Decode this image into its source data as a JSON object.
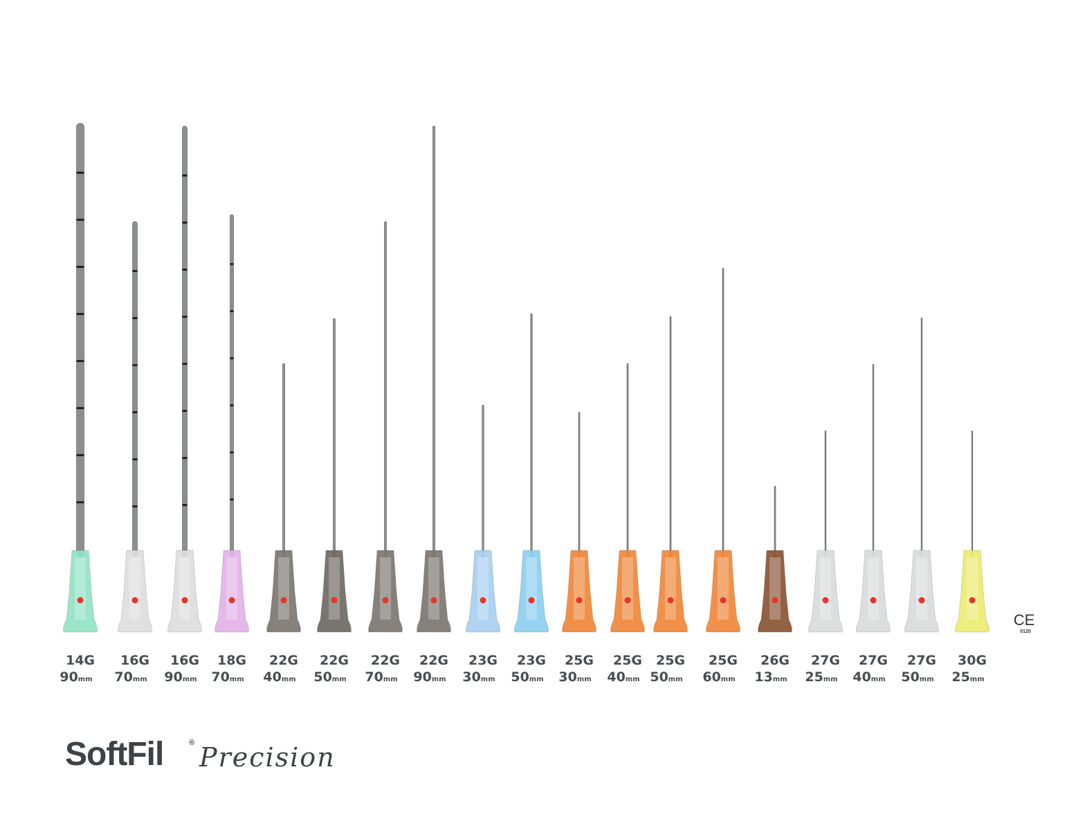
{
  "products": [
    {
      "gauge": "14G",
      "length": "90",
      "unit": "mm"
    },
    {
      "gauge": "16G",
      "length": "70",
      "unit": "mm"
    },
    {
      "gauge": "16G",
      "length": "90",
      "unit": "mm"
    },
    {
      "gauge": "18G",
      "length": "70",
      "unit": "mm"
    },
    {
      "gauge": "22G",
      "length": "40",
      "unit": "mm"
    },
    {
      "gauge": "22G",
      "length": "50",
      "unit": "mm"
    },
    {
      "gauge": "22G",
      "length": "70",
      "unit": "mm"
    },
    {
      "gauge": "22G",
      "length": "90",
      "unit": "mm"
    },
    {
      "gauge": "23G",
      "length": "30",
      "unit": "mm"
    },
    {
      "gauge": "23G",
      "length": "50",
      "unit": "mm"
    },
    {
      "gauge": "25G",
      "length": "30",
      "unit": "mm"
    },
    {
      "gauge": "25G",
      "length": "40",
      "unit": "mm"
    },
    {
      "gauge": "25G",
      "length": "50",
      "unit": "mm"
    },
    {
      "gauge": "25G",
      "length": "60",
      "unit": "mm"
    },
    {
      "gauge": "26G",
      "length": "13",
      "unit": "mm"
    },
    {
      "gauge": "27G",
      "length": "25",
      "unit": "mm"
    },
    {
      "gauge": "27G",
      "length": "40",
      "unit": "mm"
    },
    {
      "gauge": "27G",
      "length": "50",
      "unit": "mm"
    },
    {
      "gauge": "30G",
      "length": "25",
      "unit": "mm"
    }
  ],
  "brand": {
    "name": "SoftFil",
    "registered": "®",
    "line": "Precision"
  },
  "certification": {
    "mark": "CE",
    "number": "0120"
  }
}
